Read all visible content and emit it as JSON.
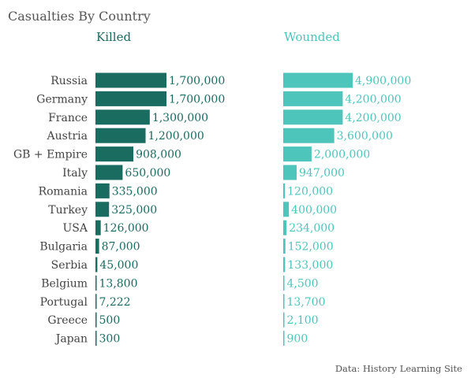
{
  "chart_data": {
    "type": "bar",
    "title": "Casualties By Country",
    "source": "Data: History Learning Site",
    "colors": {
      "killed": "#1a6b60",
      "wounded": "#4ec5bb",
      "text": "#444444"
    },
    "categories": [
      "Russia",
      "Germany",
      "France",
      "Austria",
      "GB + Empire",
      "Italy",
      "Romania",
      "Turkey",
      "USA",
      "Bulgaria",
      "Serbia",
      "Belgium",
      "Portugal",
      "Greece",
      "Japan"
    ],
    "series": [
      {
        "name": "Killed",
        "values": [
          1700000,
          1700000,
          1300000,
          1200000,
          908000,
          650000,
          335000,
          325000,
          126000,
          87000,
          45000,
          13800,
          7222,
          500,
          300
        ],
        "labels": [
          "1,700,000",
          "1,700,000",
          "1,300,000",
          "1,200,000",
          "908,000",
          "650,000",
          "335,000",
          "325,000",
          "126,000",
          "87,000",
          "45,000",
          "13,800",
          "7,222",
          "500",
          "300"
        ]
      },
      {
        "name": "Wounded",
        "values": [
          4900000,
          4200000,
          4200000,
          3600000,
          2000000,
          947000,
          120000,
          400000,
          234000,
          152000,
          133000,
          4500,
          13700,
          2100,
          900
        ],
        "labels": [
          "4,900,000",
          "4,200,000",
          "4,200,000",
          "3,600,000",
          "2,000,000",
          "947,000",
          "120,000",
          "400,000",
          "234,000",
          "152,000",
          "133,000",
          "4,500",
          "13,700",
          "2,100",
          "900"
        ]
      }
    ]
  }
}
